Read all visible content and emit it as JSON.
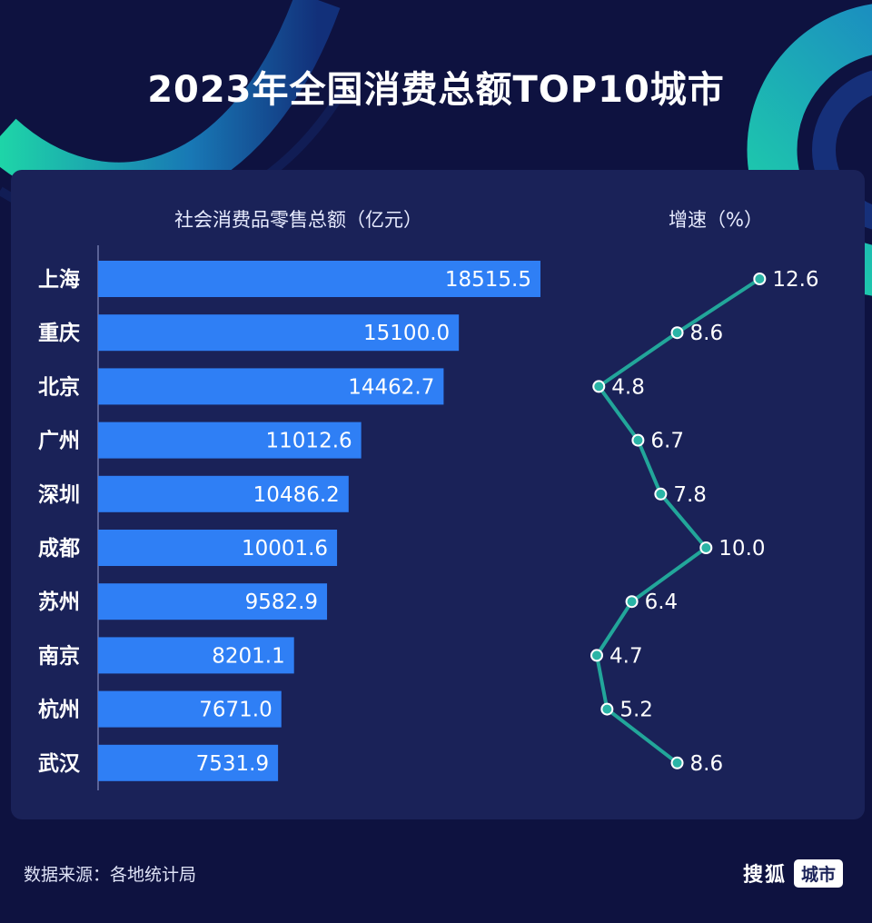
{
  "title": "2023年全国消费总额TOP10城市",
  "source": "数据来源：各地统计局",
  "brand": {
    "name": "搜狐",
    "tag": "城市"
  },
  "colors": {
    "background": "#0e1240",
    "panel": "#1a2258",
    "bar": "#2f7ff5",
    "line": "#22a69a",
    "dot": "#2ab4a6",
    "accent": "#1ed5a8"
  },
  "chart_data": [
    {
      "type": "bar",
      "orientation": "horizontal",
      "title": "社会消费品零售总额（亿元）",
      "categories": [
        "上海",
        "重庆",
        "北京",
        "广州",
        "深圳",
        "成都",
        "苏州",
        "南京",
        "杭州",
        "武汉"
      ],
      "values": [
        18515.5,
        15100.0,
        14462.7,
        11012.6,
        10486.2,
        10001.6,
        9582.9,
        8201.1,
        7671.0,
        7531.9
      ],
      "labels": [
        "18515.5",
        "15100.0",
        "14462.7",
        "11012.6",
        "10486.2",
        "10001.6",
        "9582.9",
        "8201.1",
        "7671.0",
        "7531.9"
      ],
      "xlim": [
        0,
        18515.5
      ]
    },
    {
      "type": "line",
      "title": "增速（%）",
      "categories": [
        "上海",
        "重庆",
        "北京",
        "广州",
        "深圳",
        "成都",
        "苏州",
        "南京",
        "杭州",
        "武汉"
      ],
      "values": [
        12.6,
        8.6,
        4.8,
        6.7,
        7.8,
        10.0,
        6.4,
        4.7,
        5.2,
        8.6
      ],
      "labels": [
        "12.6",
        "8.6",
        "4.8",
        "6.7",
        "7.8",
        "10.0",
        "6.4",
        "4.7",
        "5.2",
        "8.6"
      ]
    }
  ]
}
